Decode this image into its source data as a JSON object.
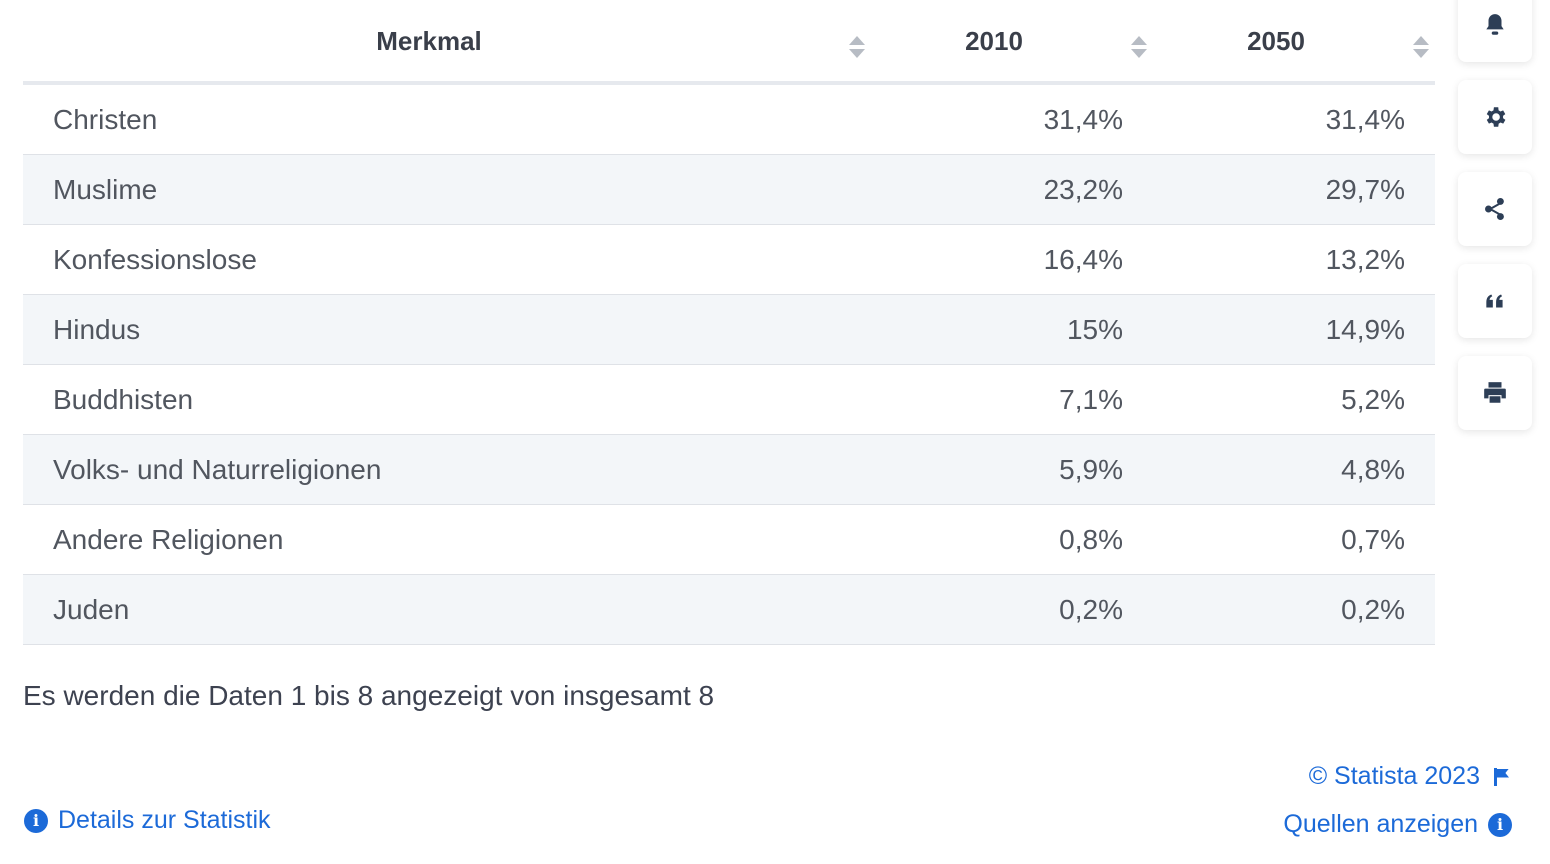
{
  "table": {
    "headers": [
      "Merkmal",
      "2010",
      "2050"
    ],
    "rows": [
      {
        "label": "Christen",
        "v2010": "31,4%",
        "v2050": "31,4%"
      },
      {
        "label": "Muslime",
        "v2010": "23,2%",
        "v2050": "29,7%"
      },
      {
        "label": "Konfessionslose",
        "v2010": "16,4%",
        "v2050": "13,2%"
      },
      {
        "label": "Hindus",
        "v2010": "15%",
        "v2050": "14,9%"
      },
      {
        "label": "Buddhisten",
        "v2010": "7,1%",
        "v2050": "5,2%"
      },
      {
        "label": "Volks- und Naturreligionen",
        "v2010": "5,9%",
        "v2050": "4,8%"
      },
      {
        "label": "Andere Religionen",
        "v2010": "0,8%",
        "v2050": "0,7%"
      },
      {
        "label": "Juden",
        "v2010": "0,2%",
        "v2050": "0,2%"
      }
    ]
  },
  "summary": "Es werden die Daten 1 bis 8 angezeigt von insgesamt 8",
  "footer": {
    "details_label": "Details zur Statistik",
    "copyright": "© Statista 2023",
    "sources_label": "Quellen anzeigen"
  },
  "sidebar": {
    "icons": [
      "bell-icon",
      "gear-icon",
      "share-icon",
      "quote-icon",
      "print-icon"
    ]
  },
  "colors": {
    "accent": "#1c6ad8",
    "row_alt": "#f3f6f9",
    "icon": "#2d3e56"
  }
}
